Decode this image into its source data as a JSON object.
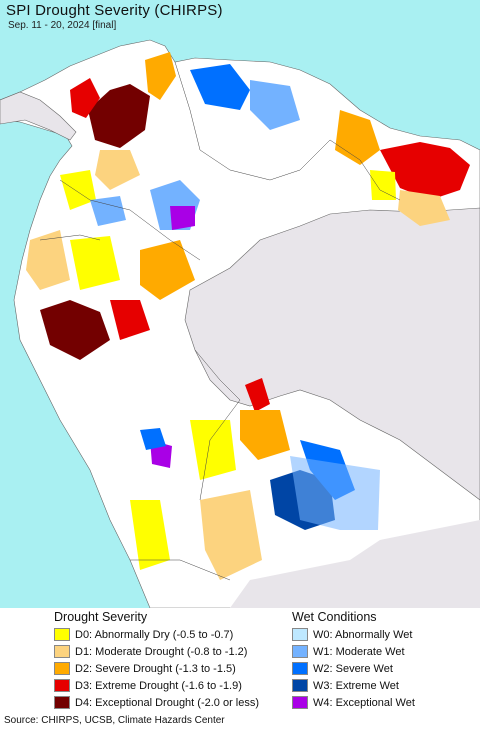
{
  "title": "SPI Drought Severity (CHIRPS)",
  "subtitle": "Sep. 11 - 20, 2024 [final]",
  "legend": {
    "drought_heading": "Drought Severity",
    "wet_heading": "Wet Conditions",
    "drought_items": [
      {
        "label": "D0: Abnormally Dry (-0.5 to -0.7)",
        "color": "#ffff00"
      },
      {
        "label": "D1: Moderate Drought (-0.8 to -1.2)",
        "color": "#fcd37f"
      },
      {
        "label": "D2: Severe Drought (-1.3 to -1.5)",
        "color": "#ffaa00"
      },
      {
        "label": "D3: Extreme Drought (-1.6 to -1.9)",
        "color": "#e60000"
      },
      {
        "label": "D4: Exceptional Drought (-2.0 or less)",
        "color": "#730000"
      }
    ],
    "wet_items": [
      {
        "label": "W0: Abnormally Wet",
        "color": "#bee8ff"
      },
      {
        "label": "W1: Moderate Wet",
        "color": "#73b2ff"
      },
      {
        "label": "W2: Severe Wet",
        "color": "#0070ff"
      },
      {
        "label": "W3: Extreme Wet",
        "color": "#0045a5"
      },
      {
        "label": "W4: Exceptional Wet",
        "color": "#a900e6"
      }
    ]
  },
  "footer": "Source: CHIRPS, UCSB, Climate Hazards Center",
  "colors": {
    "ocean": "#a9f0f2",
    "land_outside": "#e8e5ea",
    "normal": "#ffffff",
    "border": "#444444"
  }
}
